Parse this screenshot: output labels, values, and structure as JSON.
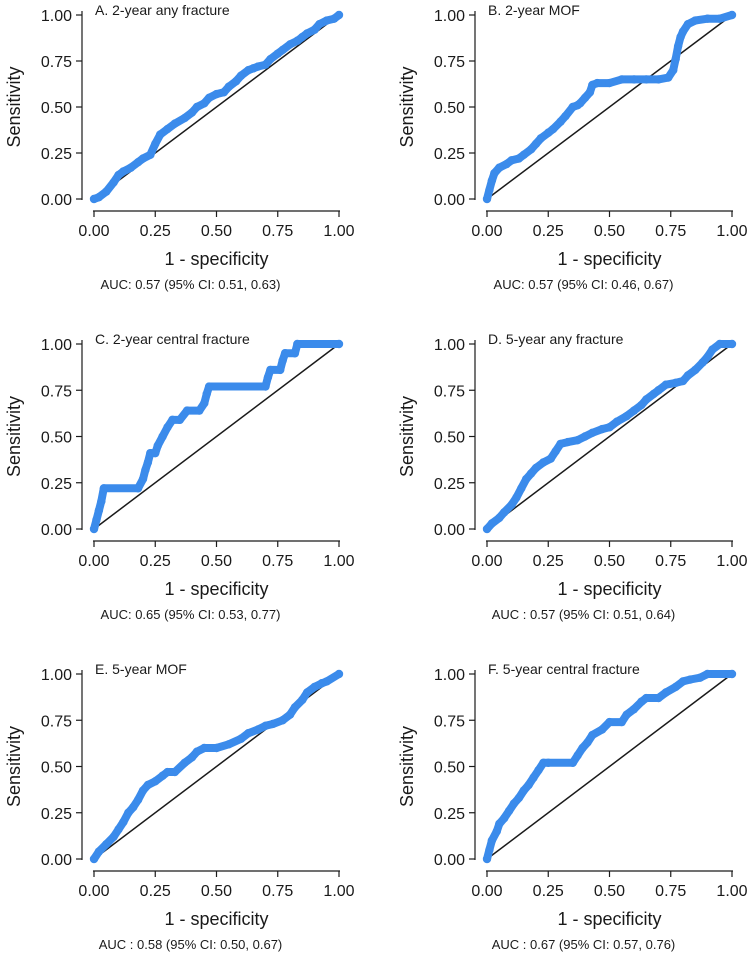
{
  "figure": {
    "ylabel": "Sensitivity",
    "xlabel": "1 - specificity"
  },
  "chart_data": [
    {
      "type": "line",
      "title": "A. 2-year any fracture",
      "auc_text": "AUC: 0.57 (95% CI: 0.51, 0.63)",
      "xlabel": "1 - specificity",
      "ylabel": "Sensitivity",
      "xlim": [
        0,
        1
      ],
      "ylim": [
        0,
        1
      ],
      "ticks": [
        0,
        0.25,
        0.5,
        0.75,
        1
      ],
      "tick_labels": [
        "0.00",
        "0.25",
        "0.50",
        "0.75",
        "1.00"
      ],
      "series": [
        {
          "name": "ROC curve",
          "x": [
            0,
            0.02,
            0.05,
            0.08,
            0.1,
            0.12,
            0.15,
            0.18,
            0.2,
            0.23,
            0.25,
            0.27,
            0.3,
            0.33,
            0.37,
            0.4,
            0.42,
            0.45,
            0.47,
            0.5,
            0.53,
            0.55,
            0.58,
            0.6,
            0.63,
            0.65,
            0.67,
            0.7,
            0.72,
            0.75,
            0.77,
            0.8,
            0.83,
            0.85,
            0.87,
            0.9,
            0.92,
            0.95,
            0.98,
            1
          ],
          "y": [
            0,
            0.01,
            0.04,
            0.09,
            0.13,
            0.15,
            0.17,
            0.2,
            0.22,
            0.24,
            0.3,
            0.35,
            0.38,
            0.41,
            0.44,
            0.47,
            0.5,
            0.52,
            0.55,
            0.57,
            0.58,
            0.61,
            0.64,
            0.67,
            0.7,
            0.71,
            0.72,
            0.73,
            0.76,
            0.79,
            0.81,
            0.84,
            0.86,
            0.88,
            0.9,
            0.92,
            0.95,
            0.97,
            0.98,
            1
          ]
        },
        {
          "name": "Reference",
          "x": [
            0,
            1
          ],
          "y": [
            0,
            1
          ]
        }
      ]
    },
    {
      "type": "line",
      "title": "B. 2-year MOF",
      "auc_text": "AUC: 0.57 (95% CI: 0.46, 0.67)",
      "xlabel": "1 - specificity",
      "ylabel": "Sensitivity",
      "xlim": [
        0,
        1
      ],
      "ylim": [
        0,
        1
      ],
      "ticks": [
        0,
        0.25,
        0.5,
        0.75,
        1
      ],
      "tick_labels": [
        "0.00",
        "0.25",
        "0.50",
        "0.75",
        "1.00"
      ],
      "series": [
        {
          "name": "ROC curve",
          "x": [
            0,
            0.01,
            0.02,
            0.03,
            0.05,
            0.08,
            0.1,
            0.13,
            0.15,
            0.18,
            0.2,
            0.22,
            0.25,
            0.27,
            0.3,
            0.32,
            0.35,
            0.37,
            0.38,
            0.4,
            0.42,
            0.43,
            0.45,
            0.5,
            0.55,
            0.6,
            0.65,
            0.7,
            0.74,
            0.76,
            0.77,
            0.78,
            0.79,
            0.8,
            0.82,
            0.85,
            0.9,
            0.95,
            1
          ],
          "y": [
            0,
            0.05,
            0.1,
            0.14,
            0.17,
            0.19,
            0.21,
            0.22,
            0.24,
            0.27,
            0.3,
            0.33,
            0.36,
            0.38,
            0.42,
            0.45,
            0.5,
            0.51,
            0.52,
            0.55,
            0.58,
            0.62,
            0.63,
            0.63,
            0.65,
            0.65,
            0.65,
            0.65,
            0.66,
            0.7,
            0.76,
            0.83,
            0.88,
            0.91,
            0.95,
            0.97,
            0.98,
            0.98,
            1
          ]
        },
        {
          "name": "Reference",
          "x": [
            0,
            1
          ],
          "y": [
            0,
            1
          ]
        }
      ]
    },
    {
      "type": "line",
      "title": "C. 2-year central fracture",
      "auc_text": "AUC: 0.65 (95% CI: 0.53, 0.77)",
      "xlabel": "1 - specificity",
      "ylabel": "Sensitivity",
      "xlim": [
        0,
        1
      ],
      "ylim": [
        0,
        1
      ],
      "ticks": [
        0,
        0.25,
        0.5,
        0.75,
        1
      ],
      "tick_labels": [
        "0.00",
        "0.25",
        "0.50",
        "0.75",
        "1.00"
      ],
      "series": [
        {
          "name": "ROC curve",
          "x": [
            0,
            0.01,
            0.02,
            0.03,
            0.04,
            0.18,
            0.2,
            0.21,
            0.22,
            0.23,
            0.25,
            0.26,
            0.28,
            0.3,
            0.32,
            0.35,
            0.38,
            0.43,
            0.45,
            0.46,
            0.47,
            0.7,
            0.71,
            0.72,
            0.76,
            0.77,
            0.78,
            0.82,
            0.83,
            1
          ],
          "y": [
            0,
            0.05,
            0.1,
            0.15,
            0.22,
            0.22,
            0.27,
            0.32,
            0.36,
            0.41,
            0.41,
            0.45,
            0.5,
            0.55,
            0.59,
            0.59,
            0.64,
            0.64,
            0.68,
            0.73,
            0.77,
            0.77,
            0.82,
            0.86,
            0.86,
            0.91,
            0.95,
            0.95,
            1,
            1
          ]
        },
        {
          "name": "Reference",
          "x": [
            0,
            1
          ],
          "y": [
            0,
            1
          ]
        }
      ]
    },
    {
      "type": "line",
      "title": "D. 5-year any fracture",
      "auc_text": "AUC : 0.57 (95% CI: 0.51, 0.64)",
      "xlabel": "1 - specificity",
      "ylabel": "Sensitivity",
      "xlim": [
        0,
        1
      ],
      "ylim": [
        0,
        1
      ],
      "ticks": [
        0,
        0.25,
        0.5,
        0.75,
        1
      ],
      "tick_labels": [
        "0.00",
        "0.25",
        "0.50",
        "0.75",
        "1.00"
      ],
      "series": [
        {
          "name": "ROC curve",
          "x": [
            0,
            0.02,
            0.05,
            0.07,
            0.1,
            0.12,
            0.14,
            0.16,
            0.18,
            0.2,
            0.23,
            0.26,
            0.28,
            0.3,
            0.33,
            0.37,
            0.4,
            0.43,
            0.47,
            0.5,
            0.53,
            0.57,
            0.6,
            0.63,
            0.65,
            0.68,
            0.7,
            0.73,
            0.77,
            0.8,
            0.82,
            0.85,
            0.88,
            0.9,
            0.92,
            0.95,
            1
          ],
          "y": [
            0,
            0.03,
            0.06,
            0.09,
            0.13,
            0.17,
            0.22,
            0.27,
            0.3,
            0.33,
            0.36,
            0.38,
            0.42,
            0.46,
            0.47,
            0.48,
            0.5,
            0.52,
            0.54,
            0.55,
            0.58,
            0.61,
            0.64,
            0.67,
            0.7,
            0.73,
            0.75,
            0.78,
            0.79,
            0.8,
            0.83,
            0.86,
            0.9,
            0.93,
            0.97,
            1,
            1
          ]
        },
        {
          "name": "Reference",
          "x": [
            0,
            1
          ],
          "y": [
            0,
            1
          ]
        }
      ]
    },
    {
      "type": "line",
      "title": "E. 5-year MOF",
      "auc_text": "AUC : 0.58 (95% CI: 0.50, 0.67)",
      "xlabel": "1 - specificity",
      "ylabel": "Sensitivity",
      "xlim": [
        0,
        1
      ],
      "ylim": [
        0,
        1
      ],
      "ticks": [
        0,
        0.25,
        0.5,
        0.75,
        1
      ],
      "tick_labels": [
        "0.00",
        "0.25",
        "0.50",
        "0.75",
        "1.00"
      ],
      "series": [
        {
          "name": "ROC curve",
          "x": [
            0,
            0.02,
            0.05,
            0.08,
            0.1,
            0.12,
            0.14,
            0.16,
            0.18,
            0.2,
            0.22,
            0.25,
            0.28,
            0.3,
            0.33,
            0.37,
            0.4,
            0.42,
            0.45,
            0.5,
            0.55,
            0.6,
            0.63,
            0.67,
            0.7,
            0.73,
            0.77,
            0.8,
            0.82,
            0.85,
            0.87,
            0.9,
            0.93,
            0.95,
            1
          ],
          "y": [
            0,
            0.04,
            0.08,
            0.12,
            0.16,
            0.2,
            0.25,
            0.28,
            0.32,
            0.37,
            0.4,
            0.42,
            0.45,
            0.47,
            0.47,
            0.52,
            0.55,
            0.58,
            0.6,
            0.6,
            0.62,
            0.65,
            0.68,
            0.7,
            0.72,
            0.73,
            0.75,
            0.78,
            0.82,
            0.86,
            0.9,
            0.93,
            0.95,
            0.96,
            1
          ]
        },
        {
          "name": "Reference",
          "x": [
            0,
            1
          ],
          "y": [
            0,
            1
          ]
        }
      ]
    },
    {
      "type": "line",
      "title": "F. 5-year central fracture",
      "auc_text": "AUC : 0.67 (95% CI: 0.57, 0.76)",
      "xlabel": "1 - specificity",
      "ylabel": "Sensitivity",
      "xlim": [
        0,
        1
      ],
      "ylim": [
        0,
        1
      ],
      "ticks": [
        0,
        0.25,
        0.5,
        0.75,
        1
      ],
      "tick_labels": [
        "0.00",
        "0.25",
        "0.50",
        "0.75",
        "1.00"
      ],
      "series": [
        {
          "name": "ROC curve",
          "x": [
            0,
            0.01,
            0.02,
            0.04,
            0.05,
            0.07,
            0.09,
            0.11,
            0.13,
            0.15,
            0.17,
            0.19,
            0.21,
            0.23,
            0.25,
            0.35,
            0.37,
            0.39,
            0.41,
            0.43,
            0.47,
            0.5,
            0.55,
            0.57,
            0.6,
            0.63,
            0.65,
            0.7,
            0.73,
            0.77,
            0.8,
            0.83,
            0.87,
            0.9,
            1
          ],
          "y": [
            0,
            0.05,
            0.1,
            0.15,
            0.19,
            0.22,
            0.26,
            0.3,
            0.33,
            0.37,
            0.4,
            0.44,
            0.48,
            0.52,
            0.52,
            0.52,
            0.56,
            0.6,
            0.63,
            0.67,
            0.7,
            0.74,
            0.74,
            0.78,
            0.81,
            0.85,
            0.87,
            0.87,
            0.9,
            0.93,
            0.96,
            0.97,
            0.98,
            1,
            1
          ]
        },
        {
          "name": "Reference",
          "x": [
            0,
            1
          ],
          "y": [
            0,
            1
          ]
        }
      ]
    }
  ],
  "colors": {
    "curve": "#3b8beb",
    "reference": "#1a1a1a",
    "axis": "#1a1a1a",
    "text": "#1a1a1a",
    "background": "#ffffff"
  }
}
